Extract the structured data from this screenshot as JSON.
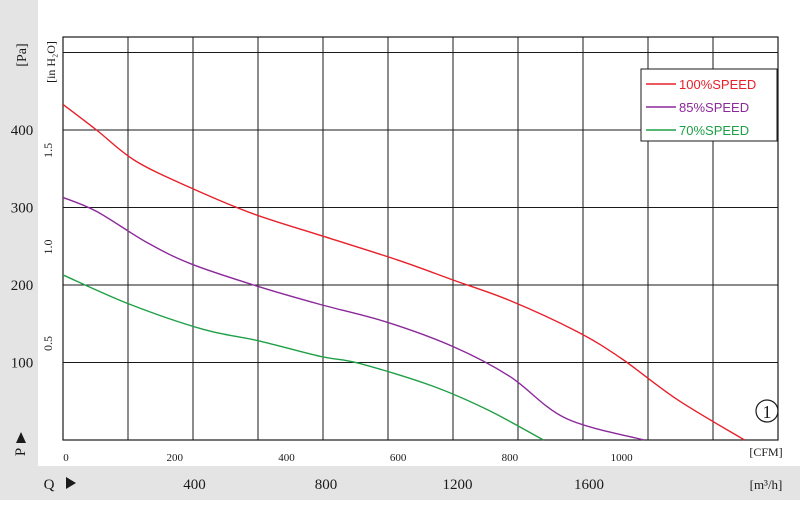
{
  "chart_data": {
    "type": "line",
    "y_units_left": "[Pa]",
    "y_units_right": "[in H₂O]",
    "y_axis_letter": "P",
    "x_units_cfm": "[CFM]",
    "x_units_m3h": "[m³/h]",
    "x_axis_letter": "Q",
    "pa_ticks": [
      "100",
      "200",
      "300",
      "400"
    ],
    "inh2o_ticks": [
      "0.5",
      "1.0",
      "1.5"
    ],
    "cfm_ticks": [
      "0",
      "200",
      "400",
      "600",
      "800",
      "1000"
    ],
    "m3h_ticks": [
      "400",
      "800",
      "1200",
      "1600"
    ],
    "xlim_cfm": [
      0,
      1280
    ],
    "ylim_pa": [
      0,
      520
    ],
    "grid": true,
    "legend_position": "top-right",
    "curve_number": "1",
    "series": [
      {
        "name": "100%SPEED",
        "color": "#e8202a",
        "points": [
          [
            0,
            433
          ],
          [
            60,
            400
          ],
          [
            130,
            360
          ],
          [
            230,
            325
          ],
          [
            340,
            292
          ],
          [
            470,
            262
          ],
          [
            600,
            232
          ],
          [
            700,
            206
          ],
          [
            800,
            180
          ],
          [
            920,
            140
          ],
          [
            1000,
            105
          ],
          [
            1100,
            52
          ],
          [
            1220,
            0
          ]
        ]
      },
      {
        "name": "85%SPEED",
        "color": "#8b2a9a",
        "points": [
          [
            0,
            313
          ],
          [
            60,
            295
          ],
          [
            150,
            255
          ],
          [
            230,
            227
          ],
          [
            350,
            198
          ],
          [
            460,
            175
          ],
          [
            580,
            152
          ],
          [
            700,
            120
          ],
          [
            800,
            82
          ],
          [
            900,
            28
          ],
          [
            1040,
            0
          ]
        ]
      },
      {
        "name": "70%SPEED",
        "color": "#1fa046",
        "points": [
          [
            0,
            213
          ],
          [
            120,
            175
          ],
          [
            250,
            143
          ],
          [
            350,
            128
          ],
          [
            460,
            108
          ],
          [
            530,
            99
          ],
          [
            660,
            70
          ],
          [
            760,
            39
          ],
          [
            860,
            0
          ]
        ]
      }
    ]
  }
}
